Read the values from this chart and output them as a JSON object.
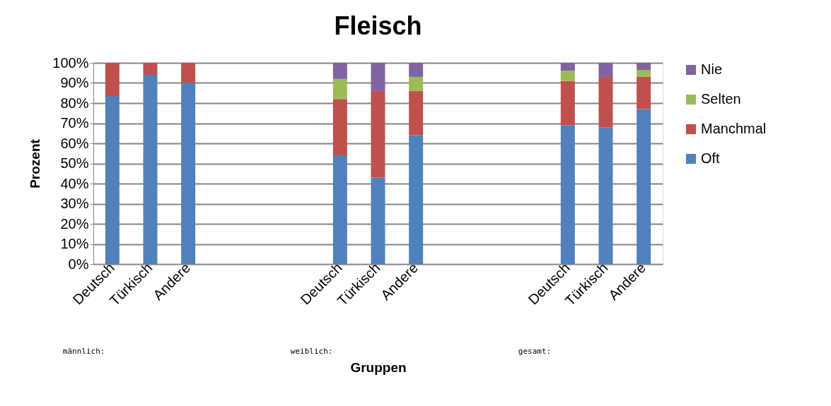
{
  "chart_data": {
    "type": "bar",
    "stacked": true,
    "title": "Fleisch",
    "xlabel": "Gruppen",
    "ylabel": "Prozent",
    "categories": [
      "Deutsch",
      "Türkisch",
      "Andere",
      null,
      null,
      null,
      "Deutsch",
      "Türkisch",
      "Andere",
      null,
      null,
      null,
      "Deutsch",
      "Türkisch",
      "Andere"
    ],
    "series": [
      {
        "name": "Oft",
        "color": "#4f81bd",
        "values": [
          83.5,
          94,
          90,
          null,
          null,
          null,
          54,
          43,
          64,
          null,
          null,
          null,
          69,
          68,
          77
        ]
      },
      {
        "name": "Manchmal",
        "color": "#c0504d",
        "values": [
          16.5,
          6,
          10,
          null,
          null,
          null,
          28,
          43,
          22,
          null,
          null,
          null,
          22,
          25,
          16
        ]
      },
      {
        "name": "Selten",
        "color": "#9bbb59",
        "values": [
          0,
          0,
          0,
          null,
          null,
          null,
          10,
          0,
          7,
          null,
          null,
          null,
          5,
          0,
          3.5
        ]
      },
      {
        "name": "Nie",
        "color": "#8064a2",
        "values": [
          0,
          0,
          0,
          null,
          null,
          null,
          8,
          14,
          7,
          null,
          null,
          null,
          4,
          7,
          3.5
        ]
      }
    ],
    "ylim": [
      0,
      100
    ],
    "yticks": [
      {
        "value": 0,
        "label": "0%"
      },
      {
        "value": 10,
        "label": "10%"
      },
      {
        "value": 20,
        "label": "20%"
      },
      {
        "value": 30,
        "label": "30%"
      },
      {
        "value": 40,
        "label": "40%"
      },
      {
        "value": 50,
        "label": "50%"
      },
      {
        "value": 60,
        "label": "60%"
      },
      {
        "value": 70,
        "label": "70%"
      },
      {
        "value": 80,
        "label": "80%"
      },
      {
        "value": 90,
        "label": "90%"
      },
      {
        "value": 100,
        "label": "100%"
      }
    ],
    "grid": "y",
    "legend": "right",
    "annotations": [
      "männlich:",
      "weiblich:",
      "gesamt:"
    ]
  }
}
